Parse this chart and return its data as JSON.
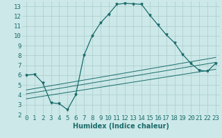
{
  "xlabel": "Humidex (Indice chaleur)",
  "bg_color": "#cce8e8",
  "grid_color": "#aacccc",
  "line_color": "#1a6b6b",
  "xlim": [
    -0.5,
    23.5
  ],
  "ylim": [
    2,
    13.5
  ],
  "xticks": [
    0,
    1,
    2,
    3,
    4,
    5,
    6,
    7,
    8,
    9,
    10,
    11,
    12,
    13,
    14,
    15,
    16,
    17,
    18,
    19,
    20,
    21,
    22,
    23
  ],
  "yticks": [
    2,
    3,
    4,
    5,
    6,
    7,
    8,
    9,
    10,
    11,
    12,
    13
  ],
  "main_curve_x": [
    0,
    1,
    2,
    3,
    4,
    5,
    6,
    7,
    8,
    9,
    10,
    11,
    12,
    13,
    14,
    15,
    16,
    17,
    18,
    19,
    20,
    21,
    22,
    23
  ],
  "main_curve_y": [
    6.0,
    6.1,
    5.2,
    3.2,
    3.1,
    2.5,
    4.0,
    8.0,
    10.0,
    11.3,
    12.2,
    13.2,
    13.3,
    13.25,
    13.2,
    12.1,
    11.1,
    10.1,
    9.3,
    8.1,
    7.2,
    6.5,
    6.4,
    7.2
  ],
  "line1_x": [
    0,
    23
  ],
  "line1_y": [
    4.5,
    7.8
  ],
  "line2_x": [
    0,
    23
  ],
  "line2_y": [
    4.1,
    7.3
  ],
  "line3_x": [
    0,
    23
  ],
  "line3_y": [
    3.6,
    6.6
  ],
  "font_size": 6.5,
  "xlabel_font_size": 7
}
